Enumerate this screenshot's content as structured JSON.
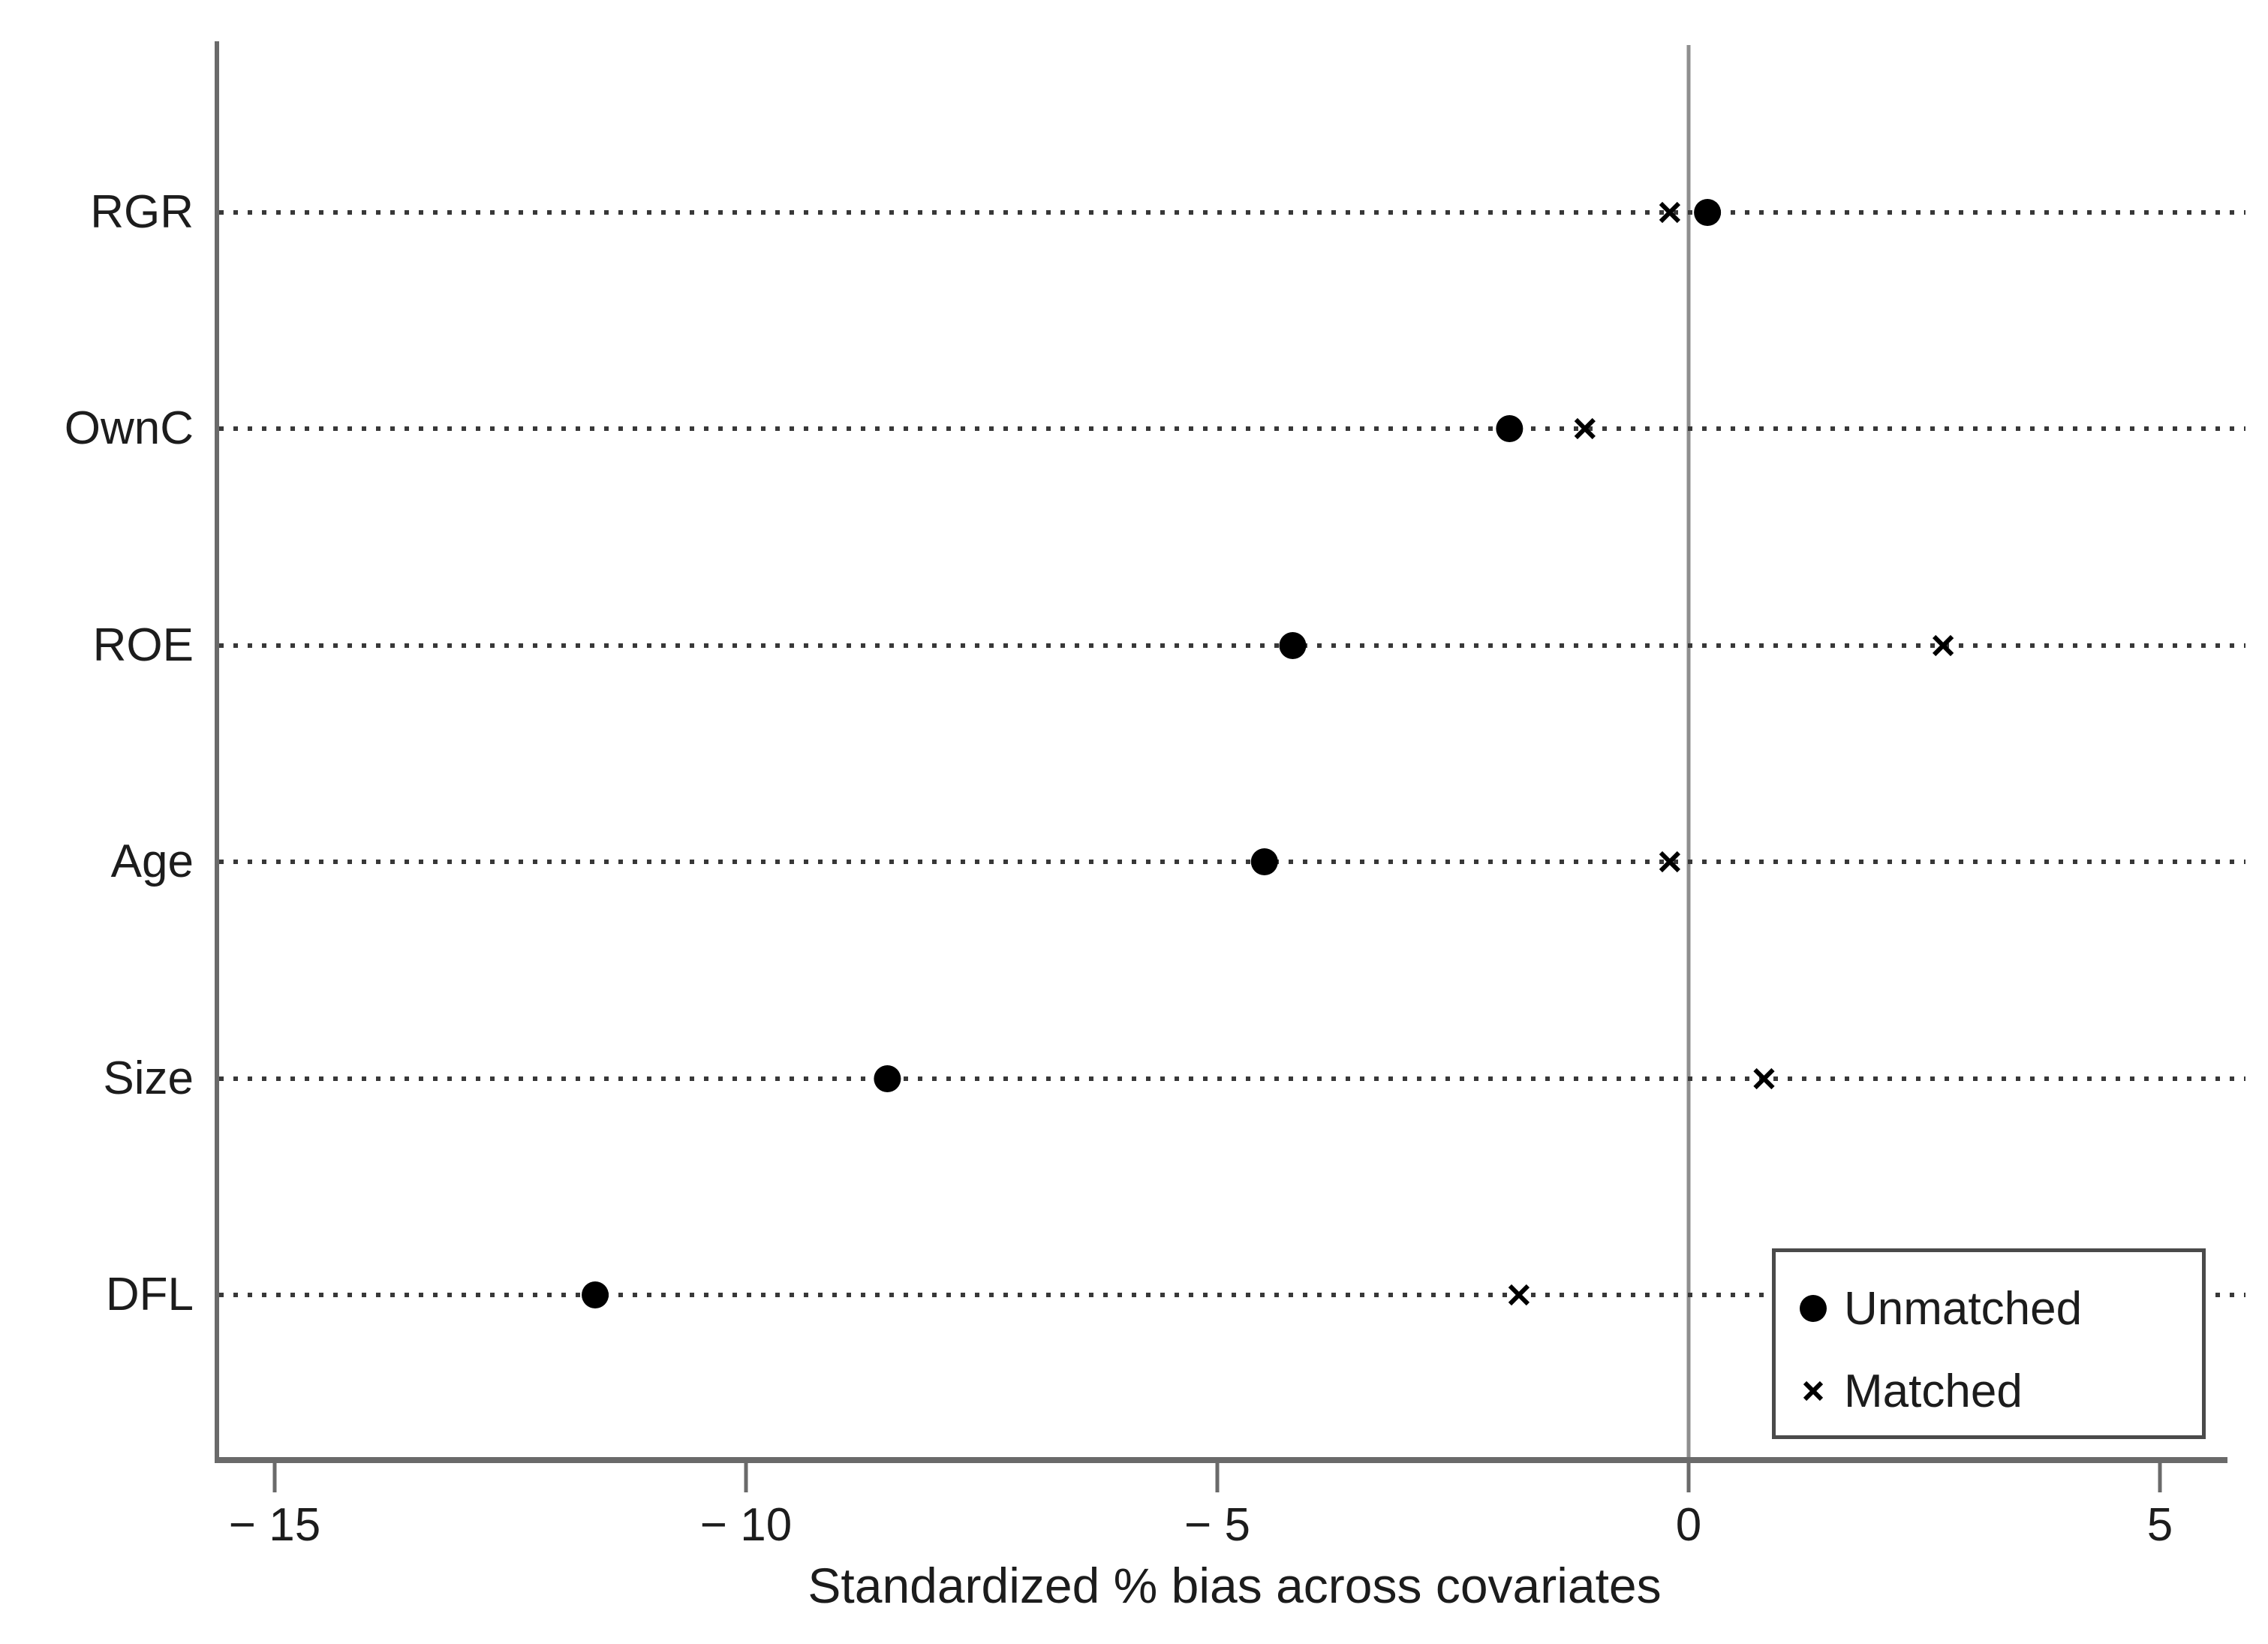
{
  "chart_data": {
    "type": "scatter",
    "title": "",
    "xlabel": "Standardized % bias across covariates",
    "ylabel": "",
    "categories": [
      "RGR",
      "OwnC",
      "ROE",
      "Age",
      "Size",
      "DFL"
    ],
    "series": [
      {
        "name": "Unmatched",
        "marker": "filled-circle",
        "color": "#000000",
        "values": [
          0.2,
          -1.9,
          -4.2,
          -4.5,
          -8.5,
          -11.6
        ]
      },
      {
        "name": "Matched",
        "marker": "x",
        "color": "#000000",
        "values": [
          -0.2,
          -1.1,
          2.7,
          -0.2,
          0.8,
          -1.8
        ]
      }
    ],
    "x_ticks": [
      -15,
      -10,
      -5,
      0,
      5
    ],
    "x_tick_labels": [
      "− 15",
      "− 10",
      "− 5",
      "0",
      "5"
    ],
    "xlim": [
      -15.6,
      5.9
    ],
    "reference_line_x": 0,
    "gridlines": "horizontal-dotted-per-category",
    "legend": {
      "position": "inside-bottom-right",
      "entries": [
        "Unmatched",
        "Matched"
      ]
    }
  },
  "colors": {
    "background": "#ffffff",
    "marker": "#000000",
    "text": "#1c1c1c",
    "axis_line": "#6a6a6a",
    "zero_line": "#8f8f8f",
    "grid_dots": "#383838",
    "legend_border": "#4a4a4a"
  }
}
